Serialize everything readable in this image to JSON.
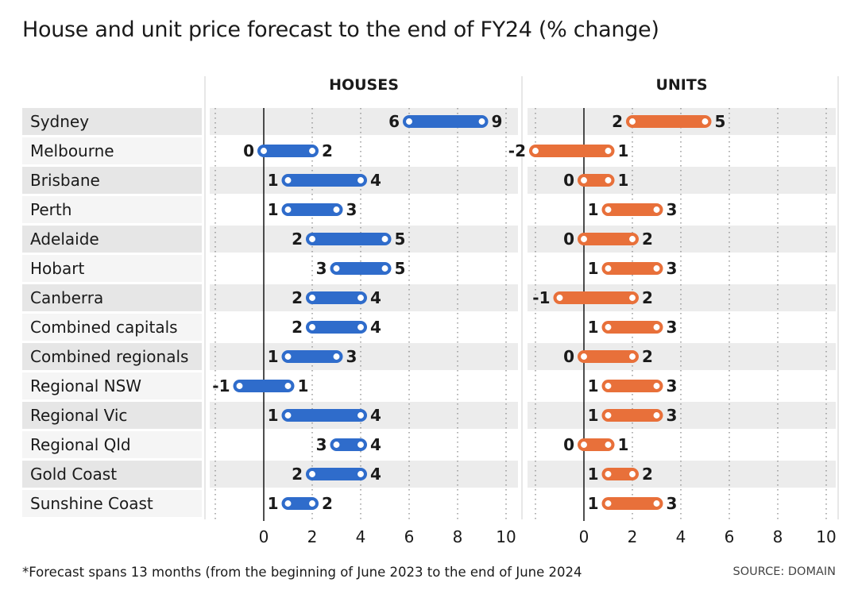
{
  "chart_data": {
    "type": "range-bar",
    "title": "House and unit price forecast to the end of FY24 (% change)",
    "footnote": "*Forecast spans 13 months (from the beginning of June 2023 to the end of June 2024",
    "source": "SOURCE: DOMAIN",
    "categories": [
      "Sydney",
      "Melbourne",
      "Brisbane",
      "Perth",
      "Adelaide",
      "Hobart",
      "Canberra",
      "Combined capitals",
      "Combined regionals",
      "Regional NSW",
      "Regional Vic",
      "Regional Qld",
      "Gold Coast",
      "Sunshine Coast"
    ],
    "xlim": [
      -2,
      10
    ],
    "xticks": [
      0,
      2,
      4,
      6,
      8,
      10
    ],
    "panels": [
      {
        "name": "HOUSES",
        "color": "#2f6ccb",
        "ranges": [
          [
            6,
            9
          ],
          [
            0,
            2
          ],
          [
            1,
            4
          ],
          [
            1,
            3
          ],
          [
            2,
            5
          ],
          [
            3,
            5
          ],
          [
            2,
            4
          ],
          [
            2,
            4
          ],
          [
            1,
            3
          ],
          [
            -1,
            1
          ],
          [
            1,
            4
          ],
          [
            3,
            4
          ],
          [
            2,
            4
          ],
          [
            1,
            2
          ]
        ]
      },
      {
        "name": "UNITS",
        "color": "#e8703a",
        "ranges": [
          [
            2,
            5
          ],
          [
            -2,
            1
          ],
          [
            0,
            1
          ],
          [
            1,
            3
          ],
          [
            0,
            2
          ],
          [
            1,
            3
          ],
          [
            -1,
            2
          ],
          [
            1,
            3
          ],
          [
            0,
            2
          ],
          [
            1,
            3
          ],
          [
            1,
            3
          ],
          [
            0,
            1
          ],
          [
            1,
            2
          ],
          [
            1,
            3
          ]
        ]
      }
    ]
  }
}
